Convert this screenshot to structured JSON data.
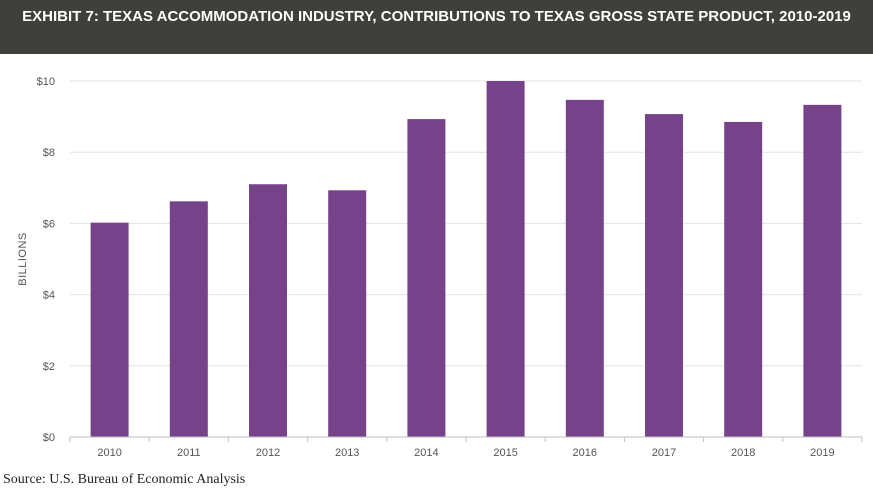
{
  "page": {
    "title": "EXHIBIT 7: TEXAS ACCOMMODATION INDUSTRY, CONTRIBUTIONS TO TEXAS GROSS STATE PRODUCT, 2010-2019",
    "source": "Source: U.S. Bureau of Economic Analysis"
  },
  "colors": {
    "title_bg": "#3f3f3b",
    "bar": "#76428a",
    "grid": "#e3e3e3",
    "axis": "#bfbfbf"
  },
  "chart_data": {
    "type": "bar",
    "title": "EXHIBIT 7: TEXAS ACCOMMODATION INDUSTRY, CONTRIBUTIONS TO TEXAS GROSS STATE PRODUCT, 2010-2019",
    "categories": [
      "2010",
      "2011",
      "2012",
      "2013",
      "2014",
      "2015",
      "2016",
      "2017",
      "2018",
      "2019"
    ],
    "values": [
      6.02,
      6.62,
      7.1,
      6.93,
      8.93,
      10.0,
      9.47,
      9.07,
      8.85,
      9.33
    ],
    "xlabel": "",
    "ylabel": "BILLIONS",
    "ylim": [
      0,
      10
    ],
    "yticks": [
      0,
      2,
      4,
      6,
      8,
      10
    ],
    "ytick_labels": [
      "$0",
      "$2",
      "$4",
      "$6",
      "$8",
      "$10"
    ],
    "grid": true,
    "legend": "none"
  }
}
